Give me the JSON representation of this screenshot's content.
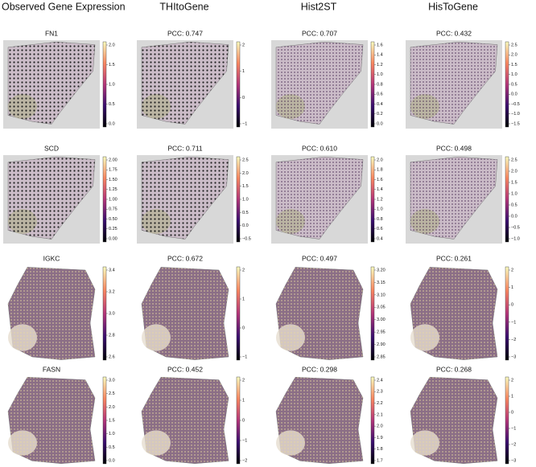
{
  "column_headers": [
    "Observed Gene Expression",
    "THItoGene",
    "Hist2ST",
    "HisToGene"
  ],
  "rows": [
    {
      "panels": [
        {
          "title": "FN1",
          "colorbar_ticks": [
            "2.0",
            "1.5",
            "1.0",
            "0.5",
            "0.0"
          ]
        },
        {
          "title": "PCC: 0.747",
          "colorbar_ticks": [
            "2",
            "1",
            "0",
            "−1"
          ]
        },
        {
          "title": "PCC: 0.707",
          "colorbar_ticks": [
            "1.6",
            "1.4",
            "1.2",
            "1.0",
            "0.8",
            "0.6",
            "0.4",
            "0.2",
            "0.0"
          ]
        },
        {
          "title": "PCC: 0.432",
          "colorbar_ticks": [
            "2.5",
            "2.0",
            "1.5",
            "1.0",
            "0.5",
            "0.0",
            "−0.5",
            "−1.0",
            "−1.5"
          ]
        }
      ]
    },
    {
      "panels": [
        {
          "title": "SCD",
          "colorbar_ticks": [
            "2.00",
            "1.75",
            "1.50",
            "1.25",
            "1.00",
            "0.75",
            "0.50",
            "0.25",
            "0.00"
          ]
        },
        {
          "title": "PCC: 0.711",
          "colorbar_ticks": [
            "2.5",
            "2.0",
            "1.5",
            "1.0",
            "0.5",
            "0.0",
            "−0.5"
          ]
        },
        {
          "title": "PCC: 0.610",
          "colorbar_ticks": [
            "2.0",
            "1.8",
            "1.6",
            "1.4",
            "1.2",
            "1.0",
            "0.8",
            "0.6",
            "0.4"
          ]
        },
        {
          "title": "PCC: 0.498",
          "colorbar_ticks": [
            "2.5",
            "2.0",
            "1.5",
            "1.0",
            "0.5",
            "0.0",
            "−0.5",
            "−1.0"
          ]
        }
      ]
    },
    {
      "panels": [
        {
          "title": "IGKC",
          "colorbar_ticks": [
            "3.4",
            "3.2",
            "3.0",
            "2.8",
            "2.6"
          ]
        },
        {
          "title": "PCC: 0.672",
          "colorbar_ticks": [
            "2",
            "1",
            "0",
            "−1"
          ]
        },
        {
          "title": "PCC: 0.497",
          "colorbar_ticks": [
            "3.20",
            "3.15",
            "3.10",
            "3.05",
            "3.00",
            "2.95",
            "2.90",
            "2.85"
          ]
        },
        {
          "title": "PCC: 0.261",
          "colorbar_ticks": [
            "2",
            "1",
            "0",
            "−1",
            "−2",
            "−3"
          ]
        }
      ]
    },
    {
      "panels": [
        {
          "title": "FASN",
          "colorbar_ticks": [
            "3.0",
            "2.5",
            "2.0",
            "1.5",
            "1.0",
            "0.5",
            "0.0"
          ]
        },
        {
          "title": "PCC: 0.452",
          "colorbar_ticks": [
            "2",
            "1",
            "0",
            "−1",
            "−2"
          ]
        },
        {
          "title": "PCC: 0.298",
          "colorbar_ticks": [
            "2.4",
            "2.3",
            "2.2",
            "2.1",
            "2.0",
            "1.9",
            "1.8",
            "1.7"
          ]
        },
        {
          "title": "PCC: 0.268",
          "colorbar_ticks": [
            "2",
            "1",
            "0",
            "−1",
            "−2",
            "−3"
          ]
        }
      ]
    }
  ]
}
